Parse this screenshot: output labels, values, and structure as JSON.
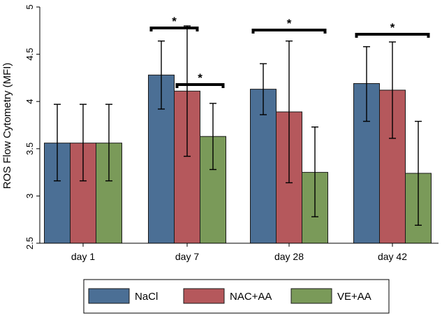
{
  "chart_data": {
    "type": "bar",
    "title": "",
    "xlabel": "",
    "ylabel": "ROS Flow Cytometry (MFI)",
    "ylim": [
      2.5,
      5
    ],
    "yticks": [
      2.5,
      3,
      3.5,
      4,
      4.5,
      5
    ],
    "ytick_labels": [
      "2.5",
      "3",
      "3.5",
      "4",
      "4.5",
      "5"
    ],
    "categories": [
      "day 1",
      "day 7",
      "day 28",
      "day 42"
    ],
    "series": [
      {
        "name": "NaCl",
        "color": "#4b6f95",
        "values": [
          3.56,
          4.28,
          4.13,
          4.19
        ],
        "err_low": [
          3.16,
          3.92,
          3.86,
          3.79
        ],
        "err_high": [
          3.97,
          4.64,
          4.4,
          4.58
        ]
      },
      {
        "name": "NAC+AA",
        "color": "#b5585c",
        "values": [
          3.56,
          4.11,
          3.89,
          4.12
        ],
        "err_low": [
          3.16,
          3.42,
          3.14,
          3.61
        ],
        "err_high": [
          3.97,
          4.8,
          4.64,
          4.63
        ]
      },
      {
        "name": "VE+AA",
        "color": "#7a9a59",
        "values": [
          3.56,
          3.63,
          3.25,
          3.24
        ],
        "err_low": [
          3.16,
          3.28,
          2.78,
          2.69
        ],
        "err_high": [
          3.97,
          3.98,
          3.73,
          3.79
        ]
      }
    ],
    "significance": [
      {
        "label": "*",
        "category": "day 7",
        "from_series": "NaCl",
        "to_series": "NAC+AA"
      },
      {
        "label": "*",
        "category": "day 7",
        "from_series": "NAC+AA",
        "to_series": "VE+AA"
      },
      {
        "label": "*",
        "category": "day 28",
        "from_series": "NaCl",
        "to_series": "VE+AA"
      },
      {
        "label": "*",
        "category": "day 42",
        "from_series": "NaCl",
        "to_series": "VE+AA"
      }
    ],
    "legend": {
      "placement": "bottom",
      "entries": [
        "NaCl",
        "NAC+AA",
        "VE+AA"
      ]
    },
    "grid": false
  }
}
